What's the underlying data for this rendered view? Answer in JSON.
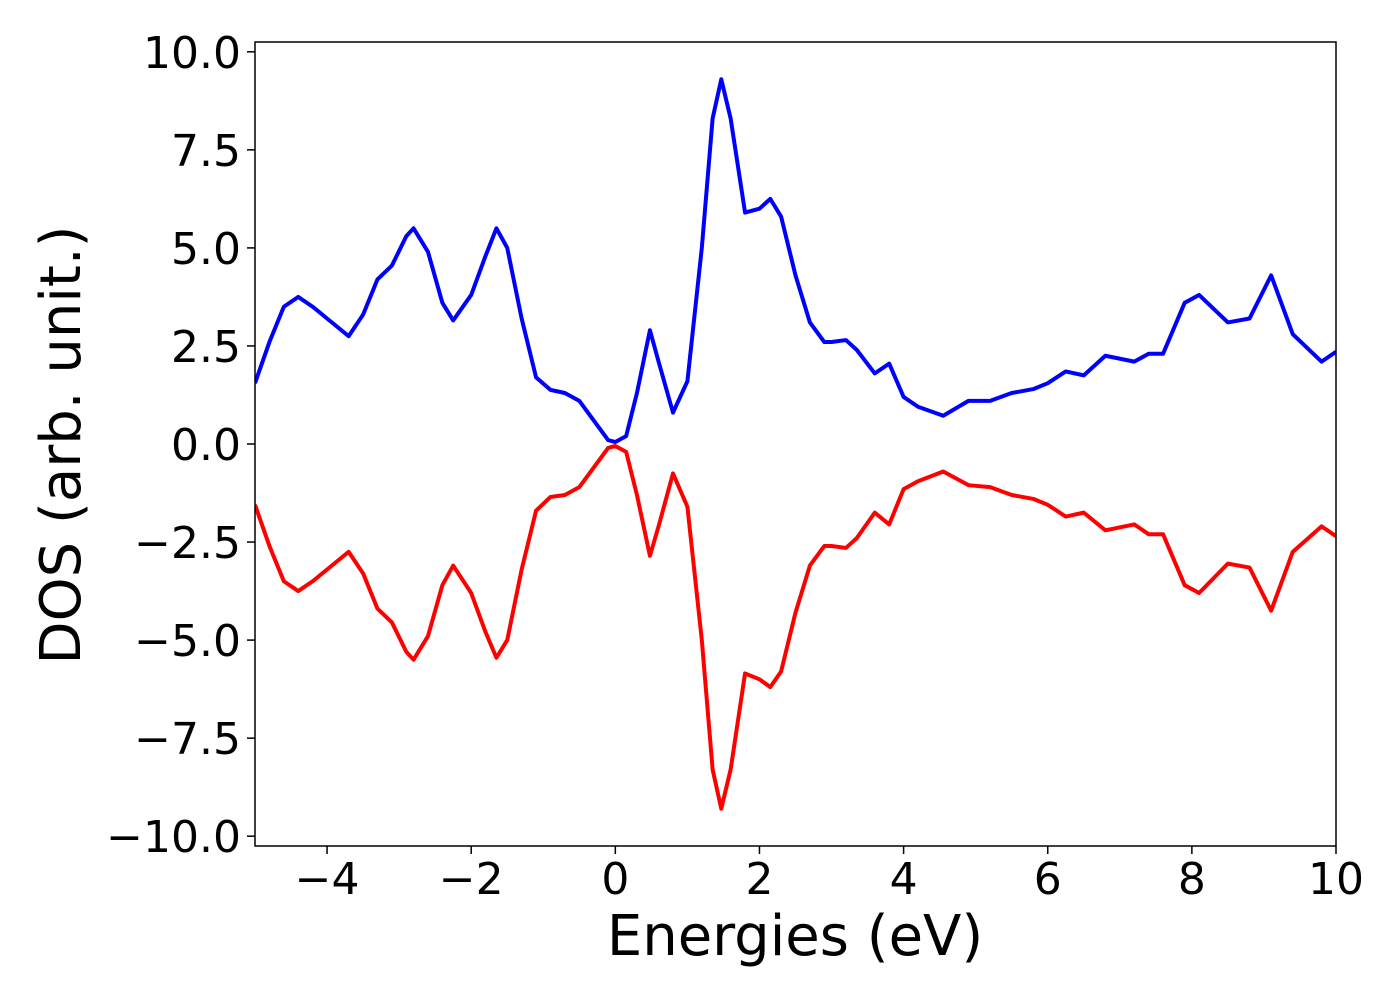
{
  "chart_data": {
    "type": "line",
    "x_label": "Energies (eV)",
    "y_label": "DOS (arb. unit.)",
    "x": [
      -5.0,
      -4.8,
      -4.6,
      -4.4,
      -4.2,
      -4.0,
      -3.7,
      -3.5,
      -3.3,
      -3.1,
      -2.9,
      -2.8,
      -2.6,
      -2.4,
      -2.25,
      -2.0,
      -1.8,
      -1.65,
      -1.5,
      -1.3,
      -1.1,
      -0.9,
      -0.7,
      -0.5,
      -0.3,
      -0.1,
      0.0,
      0.15,
      0.3,
      0.48,
      0.6,
      0.8,
      1.0,
      1.2,
      1.35,
      1.47,
      1.6,
      1.8,
      2.0,
      2.15,
      2.3,
      2.5,
      2.7,
      2.9,
      3.0,
      3.2,
      3.35,
      3.6,
      3.8,
      4.0,
      4.2,
      4.55,
      4.9,
      5.2,
      5.5,
      5.8,
      6.0,
      6.25,
      6.5,
      6.8,
      7.2,
      7.4,
      7.6,
      7.9,
      8.1,
      8.5,
      8.8,
      9.1,
      9.4,
      9.8,
      10.0
    ],
    "series": [
      {
        "color": "#0000ff",
        "values": [
          1.55,
          2.6,
          3.5,
          3.75,
          3.5,
          3.2,
          2.75,
          3.3,
          4.2,
          4.55,
          5.3,
          5.5,
          4.9,
          3.6,
          3.15,
          3.8,
          4.8,
          5.5,
          5.0,
          3.2,
          1.7,
          1.38,
          1.3,
          1.1,
          0.6,
          0.1,
          0.05,
          0.2,
          1.3,
          2.9,
          2.1,
          0.8,
          1.6,
          5.0,
          8.3,
          9.3,
          8.3,
          5.9,
          6.0,
          6.25,
          5.8,
          4.3,
          3.1,
          2.6,
          2.6,
          2.65,
          2.4,
          1.8,
          2.05,
          1.2,
          0.95,
          0.72,
          1.1,
          1.1,
          1.3,
          1.4,
          1.55,
          1.85,
          1.75,
          2.25,
          2.1,
          2.3,
          2.3,
          3.6,
          3.8,
          3.1,
          3.2,
          4.3,
          2.8,
          2.1,
          2.35
        ]
      },
      {
        "color": "#ff0000",
        "values": [
          -1.55,
          -2.6,
          -3.5,
          -3.75,
          -3.5,
          -3.2,
          -2.75,
          -3.3,
          -4.2,
          -4.55,
          -5.3,
          -5.5,
          -4.9,
          -3.6,
          -3.1,
          -3.8,
          -4.8,
          -5.45,
          -5.0,
          -3.2,
          -1.7,
          -1.35,
          -1.3,
          -1.1,
          -0.6,
          -0.1,
          -0.05,
          -0.2,
          -1.3,
          -2.85,
          -2.1,
          -0.75,
          -1.6,
          -5.0,
          -8.3,
          -9.3,
          -8.3,
          -5.85,
          -6.0,
          -6.2,
          -5.8,
          -4.3,
          -3.1,
          -2.6,
          -2.6,
          -2.65,
          -2.4,
          -1.75,
          -2.05,
          -1.15,
          -0.95,
          -0.7,
          -1.05,
          -1.1,
          -1.3,
          -1.4,
          -1.55,
          -1.85,
          -1.75,
          -2.2,
          -2.05,
          -2.3,
          -2.3,
          -3.6,
          -3.8,
          -3.05,
          -3.15,
          -4.25,
          -2.75,
          -2.1,
          -2.35
        ]
      }
    ],
    "xlim": [
      -5,
      10
    ],
    "ylim": [
      -10.25,
      10.25
    ],
    "xticks": [
      {
        "value": -4,
        "label": "−4"
      },
      {
        "value": -2,
        "label": "−2"
      },
      0,
      2,
      4,
      6,
      8,
      10
    ],
    "yticks": [
      {
        "value": -10,
        "label": "−10.0"
      },
      {
        "value": -7.5,
        "label": "−7.5"
      },
      {
        "value": -5,
        "label": "−5.0"
      },
      {
        "value": -2.5,
        "label": "−2.5"
      },
      {
        "value": 0,
        "label": "0.0"
      },
      {
        "value": 2.5,
        "label": "2.5"
      },
      {
        "value": 5,
        "label": "5.0"
      },
      {
        "value": 7.5,
        "label": "7.5"
      },
      {
        "value": 10,
        "label": "10.0"
      }
    ],
    "grid": false
  }
}
